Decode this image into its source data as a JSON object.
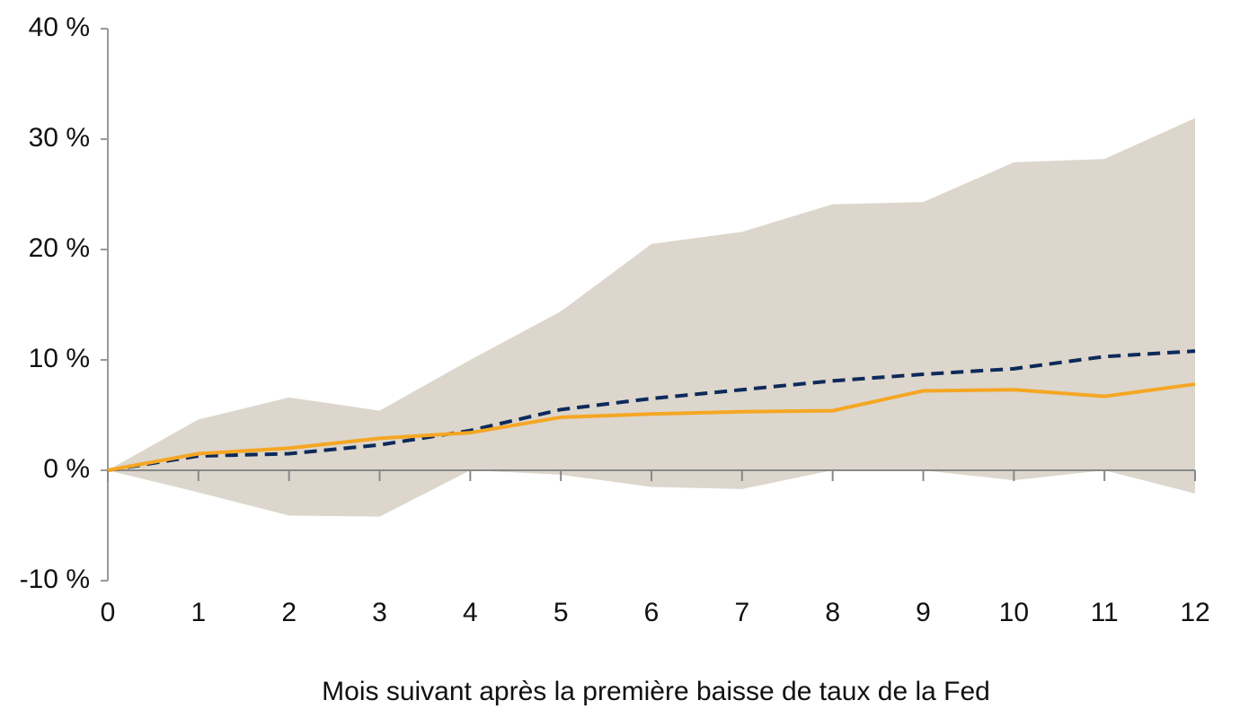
{
  "chart_data": {
    "type": "line",
    "x_label": "Mois suivant après la première baisse de taux de la Fed",
    "x": [
      0,
      1,
      2,
      3,
      4,
      5,
      6,
      7,
      8,
      9,
      10,
      11,
      12
    ],
    "xlim": [
      0,
      12
    ],
    "xticks": [
      0,
      1,
      2,
      3,
      4,
      5,
      6,
      7,
      8,
      9,
      10,
      11,
      12
    ],
    "ylim": [
      -10,
      40
    ],
    "yticks": [
      {
        "value": -10,
        "label": "-10 %"
      },
      {
        "value": 0,
        "label": "0 %"
      },
      {
        "value": 10,
        "label": "10 %"
      },
      {
        "value": 20,
        "label": "20 %"
      },
      {
        "value": 30,
        "label": "30 %"
      },
      {
        "value": 40,
        "label": "40 %"
      }
    ],
    "band": {
      "color": "#dcd6cc",
      "high": [
        0,
        4.6,
        6.6,
        5.4,
        10.0,
        14.4,
        20.5,
        21.6,
        24.1,
        24.3,
        27.9,
        28.2,
        31.9
      ],
      "low": [
        0,
        -2.0,
        -4.1,
        -4.2,
        0,
        -0.4,
        -1.5,
        -1.7,
        0,
        0,
        -0.9,
        0,
        -2.1
      ]
    },
    "series": [
      {
        "color": "#0d2a5a",
        "dashed": true,
        "values": [
          0,
          1.3,
          1.5,
          2.3,
          3.6,
          5.5,
          6.5,
          7.3,
          8.1,
          8.7,
          9.2,
          10.3,
          10.8
        ]
      },
      {
        "color": "#f5a623",
        "dashed": false,
        "values": [
          0,
          1.5,
          2.0,
          2.9,
          3.4,
          4.8,
          5.1,
          5.3,
          5.4,
          7.2,
          7.3,
          6.7,
          7.8
        ]
      }
    ]
  }
}
